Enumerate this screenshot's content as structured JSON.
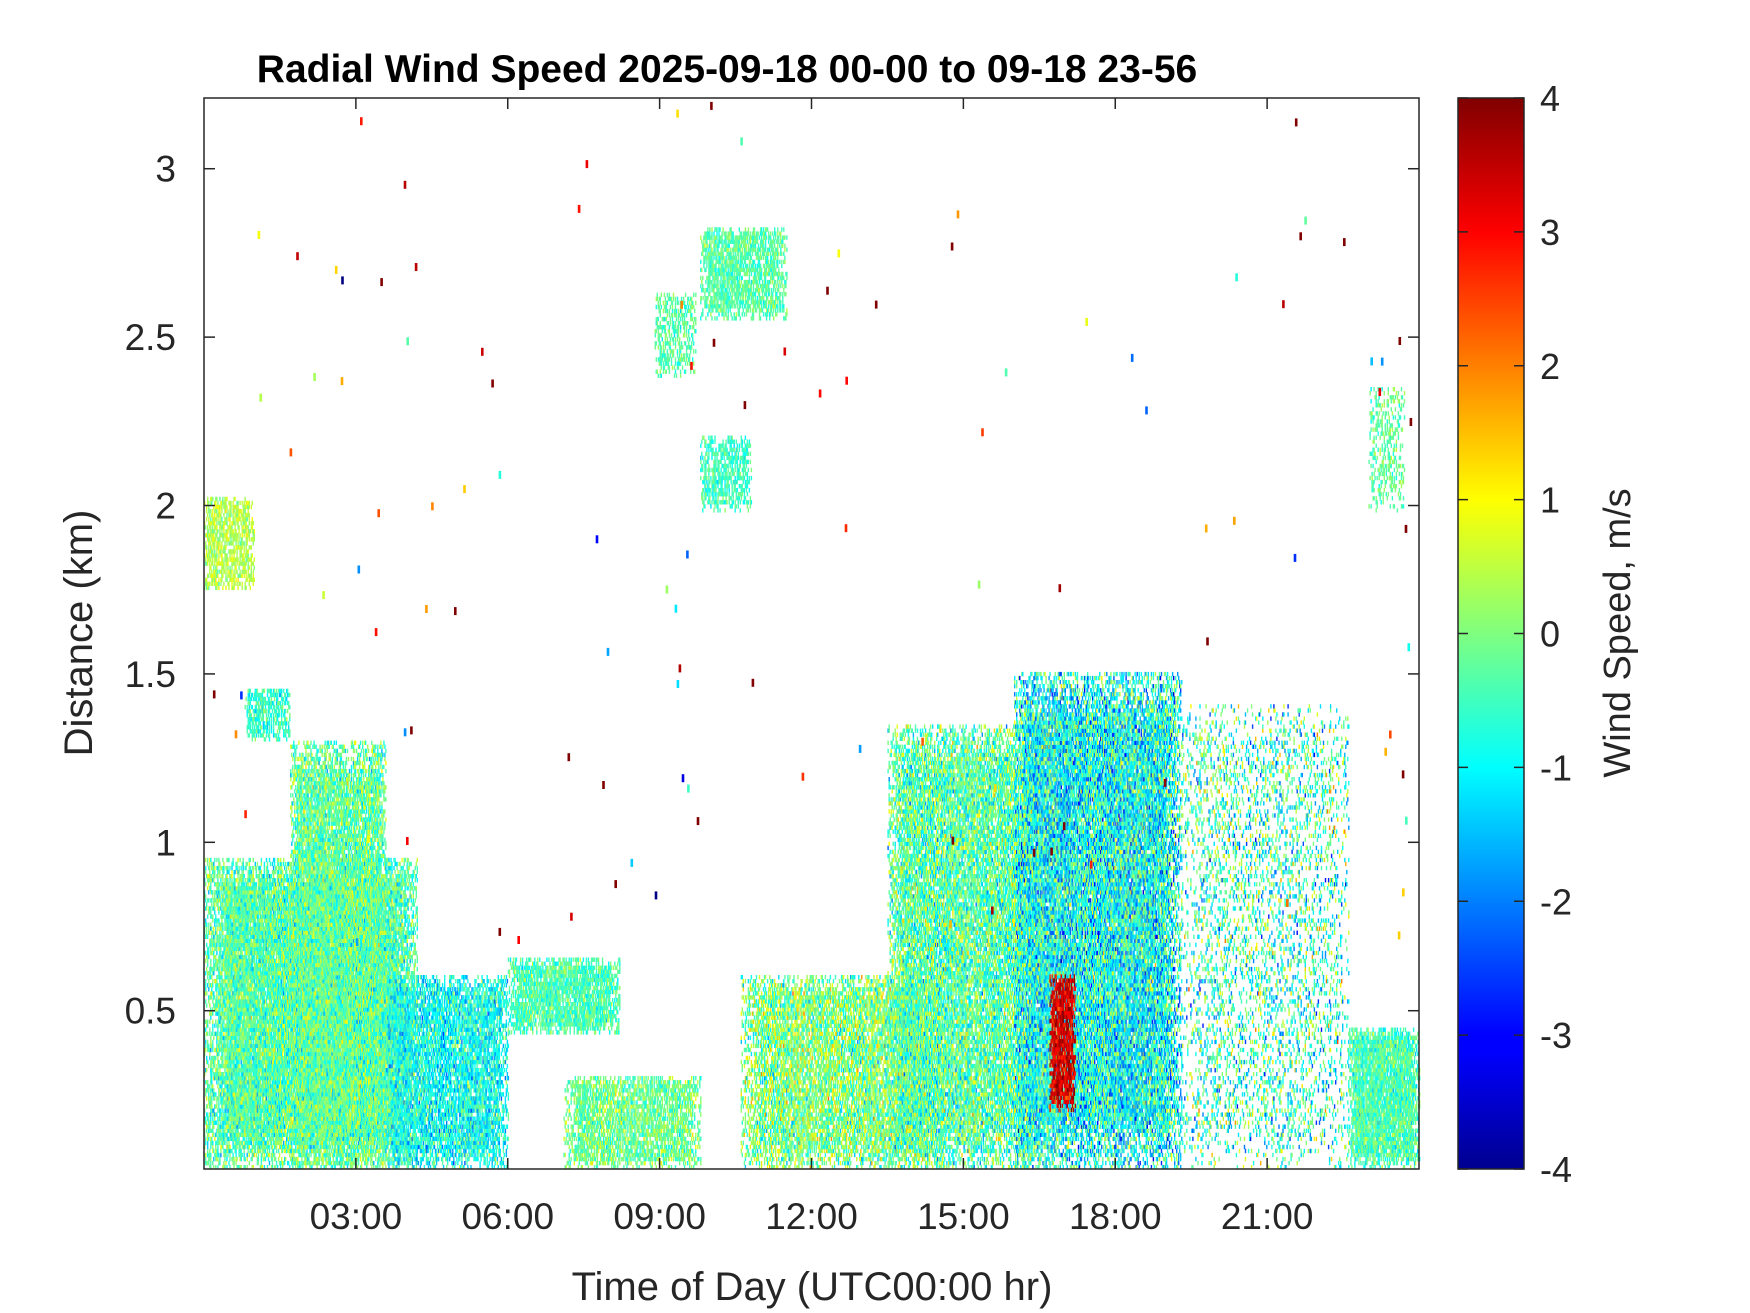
{
  "chart_data": {
    "type": "heatmap",
    "title": "Radial Wind Speed 2025-09-18 00-00 to 09-18 23-56",
    "xlabel": "Time of Day (UTC00:00 hr)",
    "ylabel": "Distance (km)",
    "xlim": [
      0,
      24
    ],
    "ylim": [
      0.03,
      3.21
    ],
    "x_ticks": [
      {
        "value": 3,
        "label": "03:00"
      },
      {
        "value": 6,
        "label": "06:00"
      },
      {
        "value": 9,
        "label": "09:00"
      },
      {
        "value": 12,
        "label": "12:00"
      },
      {
        "value": 15,
        "label": "15:00"
      },
      {
        "value": 18,
        "label": "18:00"
      },
      {
        "value": 21,
        "label": "21:00"
      }
    ],
    "y_ticks": [
      {
        "value": 0.5,
        "label": "0.5"
      },
      {
        "value": 1,
        "label": "1"
      },
      {
        "value": 1.5,
        "label": "1.5"
      },
      {
        "value": 2,
        "label": "2"
      },
      {
        "value": 2.5,
        "label": "2.5"
      },
      {
        "value": 3,
        "label": "3"
      }
    ],
    "colorbar": {
      "label": "Wind Speed, m/s",
      "min": -4,
      "max": 4,
      "ticks": [
        {
          "value": 4,
          "label": "4"
        },
        {
          "value": 3,
          "label": "3"
        },
        {
          "value": 2,
          "label": "2"
        },
        {
          "value": 1,
          "label": "1"
        },
        {
          "value": 0,
          "label": "0"
        },
        {
          "value": -1,
          "label": "-1"
        },
        {
          "value": -2,
          "label": "-2"
        },
        {
          "value": -3,
          "label": "-3"
        },
        {
          "value": -4,
          "label": "-4"
        }
      ],
      "colormap": "jet"
    },
    "grid": false,
    "regions": [
      {
        "t0": 0.0,
        "t1": 4.2,
        "d0": 0.03,
        "d1": 0.95,
        "mean": -0.3,
        "spread": 1.0,
        "density": 0.95
      },
      {
        "t0": 1.7,
        "t1": 3.6,
        "d0": 0.03,
        "d1": 1.3,
        "mean": -0.2,
        "spread": 1.0,
        "density": 0.85
      },
      {
        "t0": 3.6,
        "t1": 6.0,
        "d0": 0.03,
        "d1": 0.6,
        "mean": -0.9,
        "spread": 1.0,
        "density": 0.8
      },
      {
        "t0": 0.0,
        "t1": 1.0,
        "d0": 1.75,
        "d1": 2.02,
        "mean": 0.4,
        "spread": 0.6,
        "density": 0.7
      },
      {
        "t0": 0.8,
        "t1": 1.7,
        "d0": 1.3,
        "d1": 1.45,
        "mean": -0.6,
        "spread": 0.7,
        "density": 0.7
      },
      {
        "t0": 6.0,
        "t1": 8.2,
        "d0": 0.43,
        "d1": 0.65,
        "mean": -0.4,
        "spread": 0.7,
        "density": 0.85
      },
      {
        "t0": 7.1,
        "t1": 9.8,
        "d0": 0.03,
        "d1": 0.3,
        "mean": -0.1,
        "spread": 0.8,
        "density": 0.75
      },
      {
        "t0": 9.8,
        "t1": 11.5,
        "d0": 2.55,
        "d1": 2.82,
        "mean": -0.3,
        "spread": 0.6,
        "density": 0.75
      },
      {
        "t0": 8.9,
        "t1": 9.7,
        "d0": 2.38,
        "d1": 2.63,
        "mean": -0.3,
        "spread": 0.6,
        "density": 0.5
      },
      {
        "t0": 9.8,
        "t1": 10.8,
        "d0": 1.98,
        "d1": 2.2,
        "mean": -0.5,
        "spread": 0.6,
        "density": 0.6
      },
      {
        "t0": 10.6,
        "t1": 14.6,
        "d0": 0.03,
        "d1": 0.6,
        "mean": 0.0,
        "spread": 1.2,
        "density": 0.75
      },
      {
        "t0": 13.5,
        "t1": 16.5,
        "d0": 0.03,
        "d1": 1.35,
        "mean": -0.3,
        "spread": 1.2,
        "density": 0.8
      },
      {
        "t0": 16.0,
        "t1": 19.3,
        "d0": 0.03,
        "d1": 1.5,
        "mean": -0.9,
        "spread": 1.5,
        "density": 0.9
      },
      {
        "t0": 16.7,
        "t1": 17.2,
        "d0": 0.2,
        "d1": 0.6,
        "mean": 3.3,
        "spread": 0.8,
        "density": 0.9
      },
      {
        "t0": 19.3,
        "t1": 22.6,
        "d0": 0.03,
        "d1": 1.4,
        "mean": -0.5,
        "spread": 1.6,
        "density": 0.25
      },
      {
        "t0": 22.6,
        "t1": 24.0,
        "d0": 0.03,
        "d1": 0.45,
        "mean": -0.4,
        "spread": 0.8,
        "density": 0.9
      },
      {
        "t0": 23.0,
        "t1": 23.7,
        "d0": 1.98,
        "d1": 2.35,
        "mean": -0.2,
        "spread": 0.6,
        "density": 0.4
      }
    ],
    "scatter_noise": {
      "count": 120,
      "range_t": [
        0,
        24
      ],
      "range_d": [
        0.7,
        3.2
      ],
      "mean": 2.0,
      "spread": 3.0
    }
  }
}
